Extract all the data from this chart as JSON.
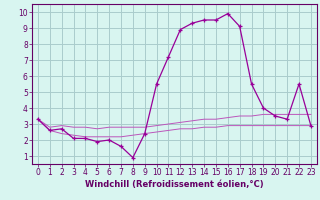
{
  "title": "",
  "xlabel": "Windchill (Refroidissement éolien,°C)",
  "x": [
    0,
    1,
    2,
    3,
    4,
    5,
    6,
    7,
    8,
    9,
    10,
    11,
    12,
    13,
    14,
    15,
    16,
    17,
    18,
    19,
    20,
    21,
    22,
    23
  ],
  "y_main": [
    3.3,
    2.6,
    2.7,
    2.1,
    2.1,
    1.9,
    2.0,
    1.6,
    0.9,
    2.4,
    5.5,
    7.2,
    8.9,
    9.3,
    9.5,
    9.5,
    9.9,
    9.1,
    5.5,
    4.0,
    3.5,
    3.3,
    5.5,
    2.9
  ],
  "y_upper": [
    3.3,
    2.8,
    2.9,
    2.8,
    2.8,
    2.7,
    2.8,
    2.8,
    2.8,
    2.8,
    2.9,
    3.0,
    3.1,
    3.2,
    3.3,
    3.3,
    3.4,
    3.5,
    3.5,
    3.6,
    3.6,
    3.6,
    3.6,
    3.6
  ],
  "y_lower": [
    3.3,
    2.6,
    2.4,
    2.3,
    2.2,
    2.2,
    2.2,
    2.2,
    2.3,
    2.4,
    2.5,
    2.6,
    2.7,
    2.7,
    2.8,
    2.8,
    2.9,
    2.9,
    2.9,
    2.9,
    2.9,
    2.9,
    2.9,
    2.9
  ],
  "line_color": "#990099",
  "band_color": "#bb55bb",
  "bg_color": "#d8f5f0",
  "grid_color": "#aacccc",
  "axis_color": "#660066",
  "tick_color": "#660066",
  "ylim": [
    0.5,
    10.5
  ],
  "xlim": [
    -0.5,
    23.5
  ],
  "yticks": [
    1,
    2,
    3,
    4,
    5,
    6,
    7,
    8,
    9,
    10
  ],
  "xticks": [
    0,
    1,
    2,
    3,
    4,
    5,
    6,
    7,
    8,
    9,
    10,
    11,
    12,
    13,
    14,
    15,
    16,
    17,
    18,
    19,
    20,
    21,
    22,
    23
  ],
  "xlabel_fontsize": 6.0,
  "tick_fontsize_x": 5.5,
  "tick_fontsize_y": 5.5
}
